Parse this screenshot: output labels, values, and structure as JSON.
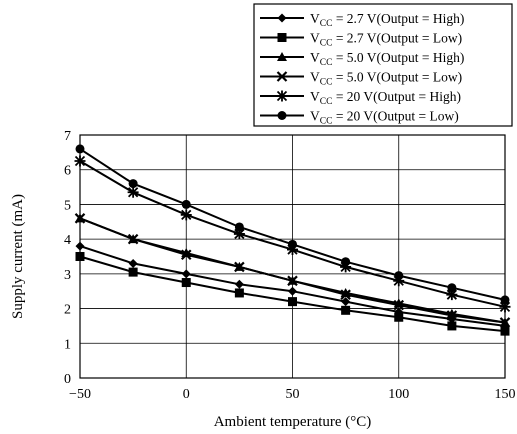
{
  "chart_data": {
    "type": "line",
    "title": "",
    "xlabel": "Ambient temperature  (°C)",
    "ylabel": "Supply current  (mA)",
    "x": [
      -50,
      -25,
      0,
      25,
      50,
      75,
      100,
      125,
      150
    ],
    "xlim": [
      -50,
      150
    ],
    "ylim": [
      0,
      7
    ],
    "xticks": [
      -50,
      0,
      50,
      100,
      150
    ],
    "yticks": [
      0,
      1,
      2,
      3,
      4,
      5,
      6,
      7
    ],
    "grid": true,
    "legend_position": "top-right",
    "series": [
      {
        "name": "VCC = 2.7 V(Output = High)",
        "label_main": "V",
        "label_sub": "CC",
        "label_rest": " = 2.7 V(Output = High)",
        "marker": "diamond",
        "values": [
          3.8,
          3.3,
          3.0,
          2.7,
          2.5,
          2.2,
          1.9,
          1.7,
          1.5
        ]
      },
      {
        "name": "VCC = 2.7 V(Output = Low)",
        "label_main": "V",
        "label_sub": "CC",
        "label_rest": " = 2.7 V(Output = Low)",
        "marker": "square",
        "values": [
          3.5,
          3.05,
          2.75,
          2.45,
          2.2,
          1.95,
          1.75,
          1.5,
          1.35
        ]
      },
      {
        "name": "VCC = 5.0 V(Output = High)",
        "label_main": "V",
        "label_sub": "CC",
        "label_rest": " = 5.0 V(Output = High)",
        "marker": "triangle",
        "values": [
          4.6,
          4.0,
          3.6,
          3.2,
          2.8,
          2.45,
          2.15,
          1.85,
          1.6
        ]
      },
      {
        "name": "VCC = 5.0 V(Output = Low)",
        "label_main": "V",
        "label_sub": "CC",
        "label_rest": " = 5.0 V(Output = Low)",
        "marker": "x",
        "values": [
          4.6,
          4.0,
          3.55,
          3.2,
          2.8,
          2.4,
          2.1,
          1.8,
          1.6
        ]
      },
      {
        "name": "VCC = 20 V(Output = High)",
        "label_main": "V",
        "label_sub": "CC",
        "label_rest": " = 20 V(Output = High)",
        "marker": "asterisk",
        "values": [
          6.25,
          5.35,
          4.7,
          4.15,
          3.7,
          3.2,
          2.8,
          2.4,
          2.05
        ]
      },
      {
        "name": "VCC = 20 V(Output = Low)",
        "label_main": "V",
        "label_sub": "CC",
        "label_rest": " = 20 V(Output = Low)",
        "marker": "circle",
        "values": [
          6.6,
          5.6,
          5.0,
          4.35,
          3.85,
          3.35,
          2.95,
          2.6,
          2.25
        ]
      }
    ]
  }
}
